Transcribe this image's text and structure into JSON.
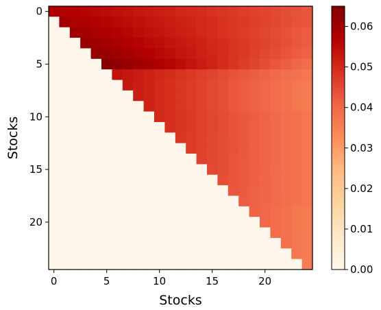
{
  "chart_data": {
    "type": "heatmap",
    "title": "",
    "xlabel": "Stocks",
    "ylabel": "Stocks",
    "n": 25,
    "x_ticks": [
      0,
      5,
      10,
      15,
      20
    ],
    "y_ticks": [
      0,
      5,
      10,
      15,
      20
    ],
    "colorbar": {
      "min": 0.0,
      "max": 0.065,
      "ticks": [
        "0.00",
        "0.01",
        "0.02",
        "0.03",
        "0.04",
        "0.05",
        "0.06"
      ],
      "colormap": "OrRd"
    },
    "structure": "upper-triangular, diagonal included; zeros below diagonal",
    "row_gradient_start": [
      0.058,
      0.059,
      0.06,
      0.061,
      0.062,
      0.064,
      0.054,
      0.053,
      0.052,
      0.051,
      0.05,
      0.049,
      0.048,
      0.047,
      0.046,
      0.045,
      0.044,
      0.043,
      0.042,
      0.041,
      0.04,
      0.039,
      0.038,
      0.037,
      0.036
    ],
    "row_gradient_end": [
      0.043,
      0.043,
      0.042,
      0.042,
      0.041,
      0.039,
      0.037,
      0.036,
      0.036,
      0.036,
      0.037,
      0.037,
      0.037,
      0.037,
      0.037,
      0.037,
      0.037,
      0.037,
      0.037,
      0.036,
      0.036,
      0.036,
      0.036,
      0.036,
      0.036
    ]
  }
}
